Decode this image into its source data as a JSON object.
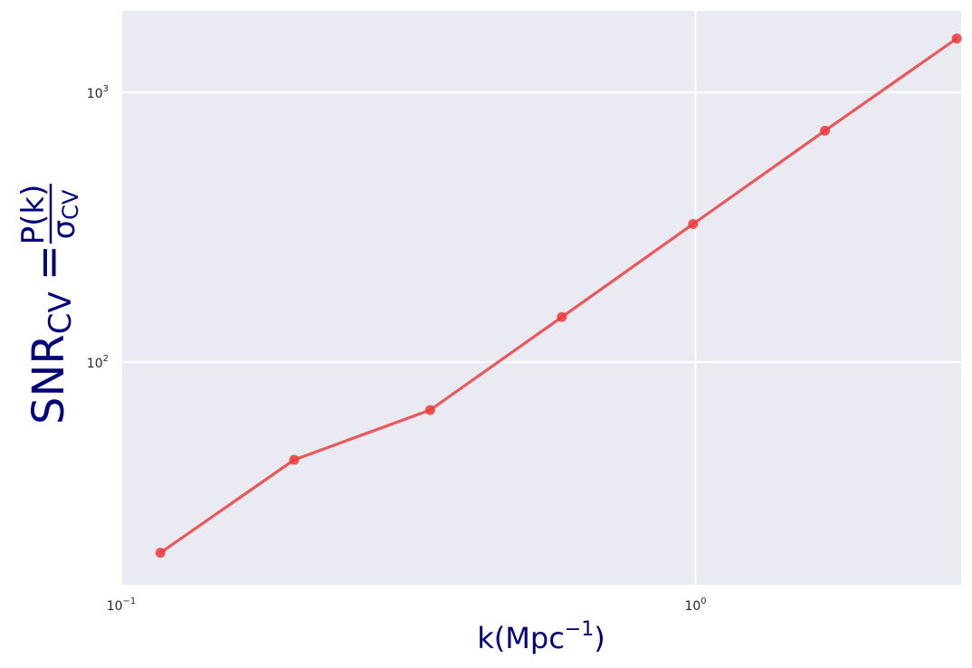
{
  "colors": {
    "plot_background": "#eaeaf2",
    "grid": "#ffffff",
    "series_line": "#e8484b",
    "series_marker": "#f03a3a",
    "axis_label": "#00007a",
    "tick_label": "#262626"
  },
  "chart_data": {
    "type": "line",
    "xscale": "log",
    "yscale": "log",
    "xlim": [
      0.1,
      2.9
    ],
    "ylim": [
      15,
      2000
    ],
    "grid": true,
    "xlabel": {
      "base": "k(Mpc",
      "sup": "−1",
      "tail": ")"
    },
    "ylabel": {
      "main": "SNR",
      "sub": "CV",
      "equals": "=",
      "numerator": "P(k)",
      "denominator": "σ",
      "denominator_sub": "CV"
    },
    "x_ticks": [
      {
        "value": 0.1,
        "base": "10",
        "exp": "−1"
      },
      {
        "value": 1,
        "base": "10",
        "exp": "0"
      }
    ],
    "y_ticks": [
      {
        "value": 100,
        "base": "10",
        "exp": "2"
      },
      {
        "value": 1000,
        "base": "10",
        "exp": "3"
      }
    ],
    "series": [
      {
        "x": [
          0.117,
          0.2,
          0.345,
          0.585,
          0.99,
          1.68,
          2.85
        ],
        "y": [
          19.7,
          43.5,
          66.5,
          147,
          325,
          720,
          1580
        ]
      }
    ]
  }
}
